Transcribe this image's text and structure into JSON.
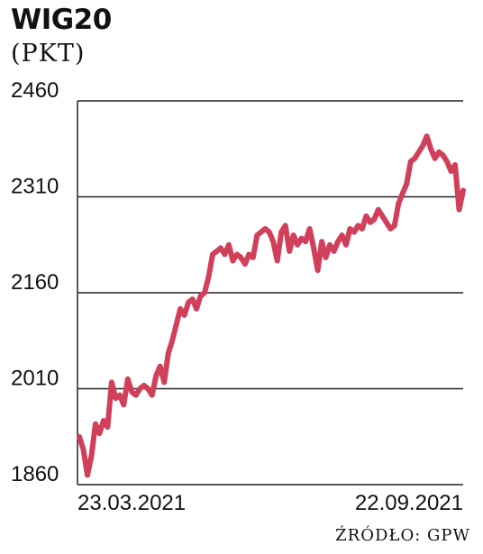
{
  "chart_data": {
    "type": "line",
    "title": "WIG20",
    "unit": "(PKT)",
    "source": "ŹRÓDŁO: GPW",
    "x_tick_labels": [
      "23.03.2021",
      "22.09.2021"
    ],
    "y_ticks": [
      1860,
      2010,
      2160,
      2310,
      2460
    ],
    "y_tick_labels": [
      "1860",
      "2010",
      "2160",
      "2310",
      "2460"
    ],
    "ylim": [
      1860,
      2460
    ],
    "grid": true,
    "line_color": "#d0405a",
    "series": [
      {
        "values": [
          1935,
          1915,
          1875,
          1905,
          1955,
          1940,
          1960,
          1950,
          2020,
          1995,
          2000,
          1985,
          2025,
          2005,
          2000,
          2010,
          2015,
          2010,
          2000,
          2030,
          2045,
          2020,
          2065,
          2085,
          2110,
          2135,
          2125,
          2145,
          2150,
          2135,
          2155,
          2160,
          2185,
          2220,
          2225,
          2230,
          2220,
          2235,
          2210,
          2220,
          2215,
          2205,
          2220,
          2215,
          2250,
          2255,
          2260,
          2255,
          2240,
          2210,
          2255,
          2265,
          2225,
          2250,
          2235,
          2245,
          2240,
          2260,
          2230,
          2195,
          2240,
          2215,
          2235,
          2225,
          2240,
          2250,
          2235,
          2260,
          2255,
          2265,
          2260,
          2280,
          2270,
          2275,
          2290,
          2280,
          2270,
          2260,
          2265,
          2300,
          2315,
          2330,
          2365,
          2370,
          2380,
          2390,
          2405,
          2385,
          2370,
          2380,
          2375,
          2365,
          2350,
          2360,
          2290,
          2320
        ]
      }
    ]
  }
}
